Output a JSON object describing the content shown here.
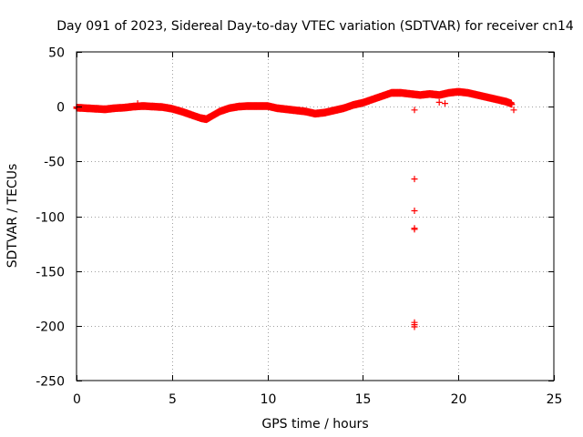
{
  "chart_data": {
    "type": "scatter",
    "title": "Day 091 of 2023, Sidereal Day-to-day VTEC variation (SDTVAR) for receiver cn14",
    "xlabel": "GPS time / hours",
    "ylabel": "SDTVAR / TECUs",
    "xlim": [
      0,
      25
    ],
    "ylim": [
      -250,
      50
    ],
    "xticks": [
      0,
      5,
      10,
      15,
      20,
      25
    ],
    "yticks": [
      50,
      0,
      -50,
      -100,
      -150,
      -200,
      -250
    ],
    "xtick_labels": [
      "0",
      "5",
      "10",
      "15",
      "20",
      "25"
    ],
    "ytick_labels": [
      "50",
      "0",
      "-50",
      "-100",
      "-150",
      "-200",
      "-250"
    ],
    "grid": true,
    "marker": "+",
    "series": [
      {
        "name": "SDTVAR",
        "color": "#ff0000",
        "trend": [
          {
            "x": 0.0,
            "y": -1.5
          },
          {
            "x": 0.5,
            "y": -2
          },
          {
            "x": 1.0,
            "y": -2.5
          },
          {
            "x": 1.5,
            "y": -3
          },
          {
            "x": 2.0,
            "y": -2
          },
          {
            "x": 2.5,
            "y": -1.5
          },
          {
            "x": 3.0,
            "y": -0.5
          },
          {
            "x": 3.5,
            "y": 0
          },
          {
            "x": 4.0,
            "y": -0.5
          },
          {
            "x": 4.5,
            "y": -1
          },
          {
            "x": 5.0,
            "y": -2.5
          },
          {
            "x": 5.5,
            "y": -5
          },
          {
            "x": 6.0,
            "y": -8
          },
          {
            "x": 6.5,
            "y": -11
          },
          {
            "x": 6.8,
            "y": -12
          },
          {
            "x": 7.0,
            "y": -10
          },
          {
            "x": 7.5,
            "y": -5
          },
          {
            "x": 8.0,
            "y": -2
          },
          {
            "x": 8.5,
            "y": -0.5
          },
          {
            "x": 9.0,
            "y": 0
          },
          {
            "x": 9.5,
            "y": 0
          },
          {
            "x": 10.0,
            "y": 0
          },
          {
            "x": 10.5,
            "y": -2
          },
          {
            "x": 11.0,
            "y": -3
          },
          {
            "x": 11.5,
            "y": -4
          },
          {
            "x": 12.0,
            "y": -5
          },
          {
            "x": 12.5,
            "y": -7
          },
          {
            "x": 13.0,
            "y": -6
          },
          {
            "x": 13.5,
            "y": -4
          },
          {
            "x": 14.0,
            "y": -2
          },
          {
            "x": 14.5,
            "y": 1
          },
          {
            "x": 15.0,
            "y": 3
          },
          {
            "x": 15.5,
            "y": 6
          },
          {
            "x": 16.0,
            "y": 9
          },
          {
            "x": 16.5,
            "y": 12
          },
          {
            "x": 17.0,
            "y": 12
          },
          {
            "x": 17.5,
            "y": 11
          },
          {
            "x": 18.0,
            "y": 10
          },
          {
            "x": 18.5,
            "y": 11
          },
          {
            "x": 19.0,
            "y": 10
          },
          {
            "x": 19.5,
            "y": 12
          },
          {
            "x": 20.0,
            "y": 13
          },
          {
            "x": 20.5,
            "y": 12
          },
          {
            "x": 21.0,
            "y": 10
          },
          {
            "x": 21.5,
            "y": 8
          },
          {
            "x": 22.0,
            "y": 6
          },
          {
            "x": 22.5,
            "y": 4
          },
          {
            "x": 22.8,
            "y": 2
          }
        ],
        "points": [
          {
            "x": 17.7,
            "y": -3
          },
          {
            "x": 17.7,
            "y": -66
          },
          {
            "x": 17.7,
            "y": -95
          },
          {
            "x": 17.7,
            "y": -111
          },
          {
            "x": 17.7,
            "y": -112
          },
          {
            "x": 17.7,
            "y": -197
          },
          {
            "x": 17.7,
            "y": -199
          },
          {
            "x": 17.7,
            "y": -201
          },
          {
            "x": 3.2,
            "y": 3
          },
          {
            "x": 19.0,
            "y": 4
          },
          {
            "x": 19.3,
            "y": 3
          },
          {
            "x": 22.9,
            "y": -3
          }
        ]
      }
    ]
  }
}
